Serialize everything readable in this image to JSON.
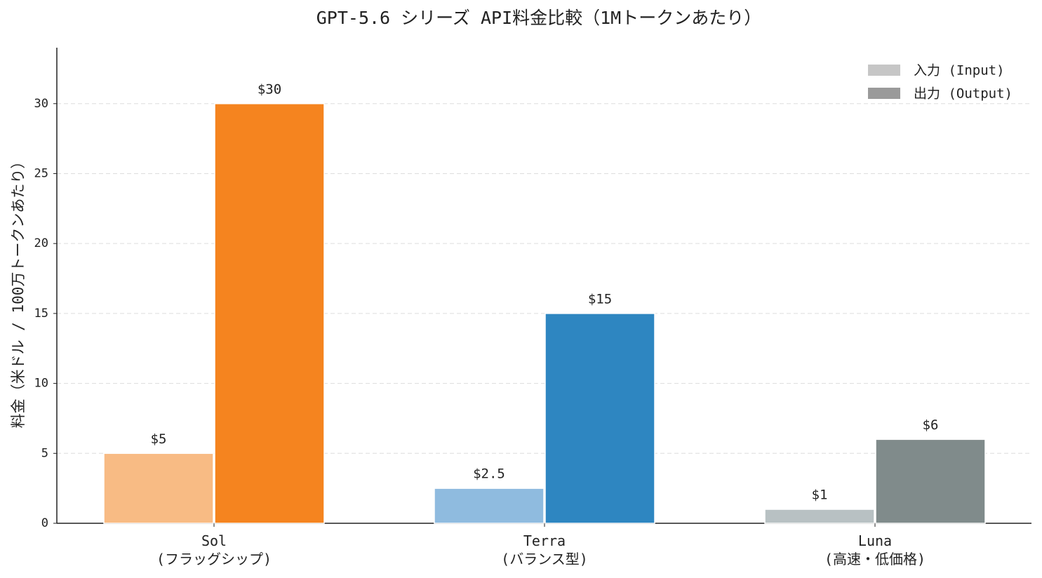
{
  "chart_data": {
    "type": "bar",
    "title": "GPT-5.6 シリーズ API料金比較（1Mトークンあたり）",
    "y_label": "料金（米ドル / 100万トークンあたり）",
    "categories": [
      "Sol\n(フラッグシップ)",
      "Terra\n(バランス型)",
      "Luna\n(高速・低価格)"
    ],
    "series": [
      {
        "name": "入力 (Input)",
        "color": "#c6c6c6",
        "colors": [
          "#f8bb84",
          "#8fbbdf",
          "#b8c1c3"
        ],
        "values": [
          5,
          2.5,
          1
        ],
        "value_labels": [
          "$5",
          "$2.5",
          "$1"
        ]
      },
      {
        "name": "出力 (Output)",
        "color": "#9a9a9a",
        "colors": [
          "#f5841f",
          "#2e86c1",
          "#808b8b"
        ],
        "values": [
          30,
          15,
          6
        ],
        "value_labels": [
          "$30",
          "$15",
          "$6"
        ]
      }
    ],
    "ylim": [
      0,
      34
    ],
    "yticks": [
      0,
      5,
      10,
      15,
      20,
      25,
      30
    ],
    "grid": true,
    "legend": "upper right"
  }
}
